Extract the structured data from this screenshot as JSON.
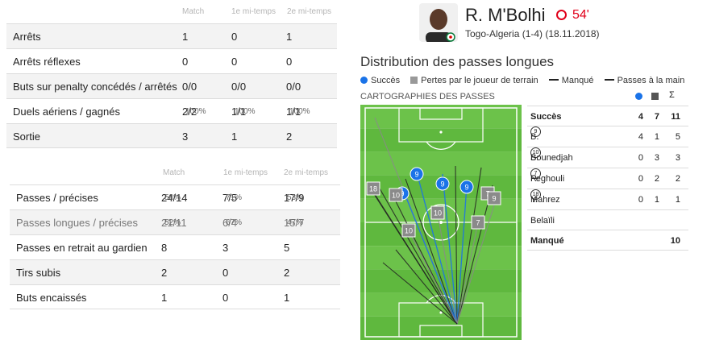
{
  "gk_table": {
    "headers": [
      "Match",
      "1e mi-temps",
      "2e mi-temps"
    ],
    "rows": [
      {
        "label": "Arrêts",
        "v": [
          "1",
          "0",
          "1"
        ]
      },
      {
        "label": "Arrêts réflexes",
        "v": [
          "0",
          "0",
          "0"
        ]
      },
      {
        "label": "Buts sur penalty concédés / arrêtés",
        "v": [
          "0/0",
          "0/0",
          "0/0"
        ]
      },
      {
        "label": "Duels aériens / gagnés",
        "v": [
          "2/2",
          "1/1",
          "1/1"
        ],
        "p": [
          "100%",
          "100%",
          "100%"
        ]
      },
      {
        "label": "Sortie",
        "v": [
          "3",
          "1",
          "2"
        ]
      }
    ]
  },
  "pass_table": {
    "headers": [
      "Match",
      "1e mi-temps",
      "2e mi-temps"
    ],
    "rows": [
      {
        "label": "Passes / précises",
        "v": [
          "24/14",
          "7/5",
          "17/9"
        ],
        "p": [
          "58%",
          "71%",
          "53%"
        ]
      },
      {
        "label": "Passes longues / précises",
        "v": [
          "21/11",
          "6/4",
          "15/7"
        ],
        "p": [
          "52%",
          "67%",
          "47%"
        ]
      },
      {
        "label": "Passes en retrait au gardien",
        "v": [
          "8",
          "3",
          "5"
        ]
      },
      {
        "label": "Tirs subis",
        "v": [
          "2",
          "0",
          "2"
        ]
      },
      {
        "label": "Buts encaissés",
        "v": [
          "1",
          "0",
          "1"
        ]
      }
    ]
  },
  "player": {
    "name": "R. M'Bolhi",
    "rating": "54'",
    "match": "Togo-Algeria (1-4) (18.11.2018)"
  },
  "section_title": "Distribution des passes longues",
  "legend": {
    "success": "Succès",
    "lost": "Pertes par le joueur de terrain",
    "missed": "Manqué",
    "hand": "Passes à la main"
  },
  "map_title": "CARTOGRAPHIES DES PASSES",
  "colors": {
    "pitch": "#6cc24a",
    "pitch_alt": "#5fb83e",
    "success": "#1a73e8",
    "lost": "#8a8a8a",
    "missed": "#222222"
  },
  "recipients": {
    "header_sigma": "Σ",
    "succes_label": "Succès",
    "succes_vals": [
      "4",
      "7",
      "11"
    ],
    "rows": [
      {
        "num": "9",
        "name": "B. Bounedjah",
        "v": [
          "4",
          "1",
          "5"
        ]
      },
      {
        "num": "10",
        "name": "S. Feghouli",
        "v": [
          "0",
          "3",
          "3"
        ]
      },
      {
        "num": "7",
        "name": "R. Mahrez",
        "v": [
          "0",
          "2",
          "2"
        ]
      },
      {
        "num": "18",
        "name": "Y. Belaïli",
        "v": [
          "0",
          "1",
          "1"
        ]
      }
    ],
    "missed_label": "Manqué",
    "missed_val": "10"
  },
  "markers": [
    {
      "num": "9",
      "kind": "success"
    },
    {
      "num": "9",
      "kind": "success"
    },
    {
      "num": "9",
      "kind": "success"
    },
    {
      "num": "9",
      "kind": "success"
    },
    {
      "num": "18",
      "kind": "lost"
    },
    {
      "num": "10",
      "kind": "lost"
    },
    {
      "num": "10",
      "kind": "lost"
    },
    {
      "num": "10",
      "kind": "lost"
    },
    {
      "num": "7",
      "kind": "lost"
    },
    {
      "num": "7",
      "kind": "lost"
    },
    {
      "num": "9",
      "kind": "lost"
    }
  ]
}
